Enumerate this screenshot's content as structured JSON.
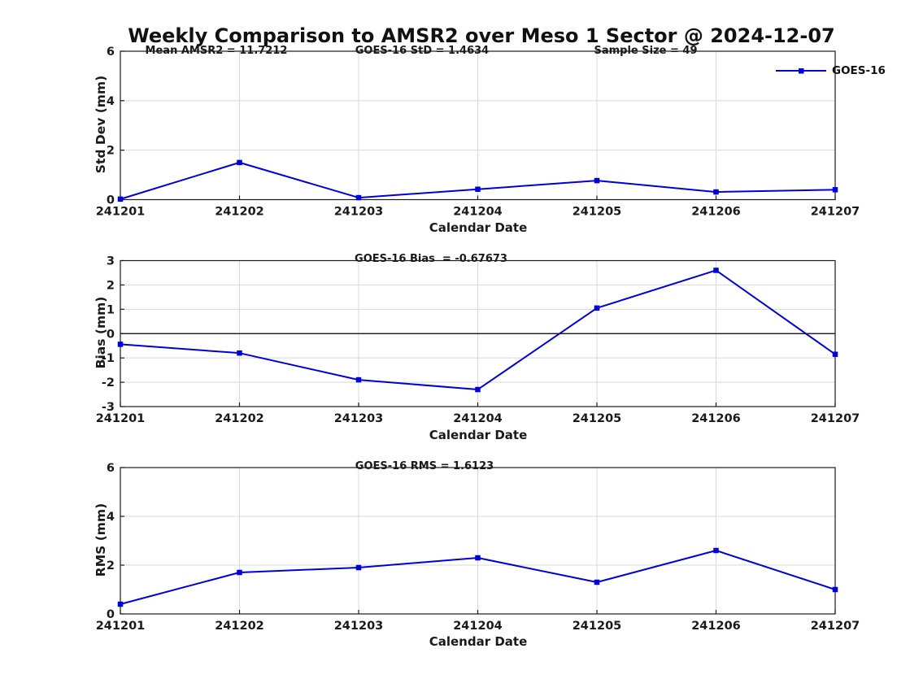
{
  "page_title": "Weekly Comparison to AMSR2 over Meso 1 Sector @ 2024-12-07",
  "legend": {
    "series_label": "GOES-16",
    "line_color": "#0000DD",
    "position": "top-right"
  },
  "colors": {
    "series_blue": "#0000DD",
    "grid_gray": "#d8d8d8",
    "axis_black": "#1a1a1a"
  },
  "chart_data": [
    {
      "type": "line",
      "panel": "std-dev",
      "annotations": [
        "Mean AMSR2 = 11.7212",
        "GOES-16 StD = 1.4634",
        "Sample Size = 49"
      ],
      "categories": [
        "241201",
        "241202",
        "241203",
        "241204",
        "241205",
        "241206",
        "241207"
      ],
      "series": [
        {
          "name": "GOES-16",
          "values": [
            0.02,
            1.5,
            0.08,
            0.42,
            0.77,
            0.31,
            0.4
          ]
        }
      ],
      "xlabel": "Calendar Date",
      "ylabel": "Std Dev (mm)",
      "ylim": [
        0,
        6
      ],
      "yticks": [
        0,
        2,
        4,
        6
      ],
      "grid": true,
      "zero_line": false,
      "marker": "square"
    },
    {
      "type": "line",
      "panel": "bias",
      "annotations": [
        "GOES-16 Bias  = -0.67673"
      ],
      "categories": [
        "241201",
        "241202",
        "241203",
        "241204",
        "241205",
        "241206",
        "241207"
      ],
      "series": [
        {
          "name": "GOES-16",
          "values": [
            -0.44,
            -0.8,
            -1.9,
            -2.3,
            1.05,
            2.6,
            -0.85
          ]
        }
      ],
      "xlabel": "Calendar Date",
      "ylabel": "Bias (mm)",
      "ylim": [
        -3,
        3
      ],
      "yticks": [
        -3,
        -2,
        -1,
        0,
        1,
        2,
        3
      ],
      "grid": true,
      "zero_line": true,
      "marker": "square"
    },
    {
      "type": "line",
      "panel": "rms",
      "annotations": [
        "GOES-16 RMS = 1.6123"
      ],
      "categories": [
        "241201",
        "241202",
        "241203",
        "241204",
        "241205",
        "241206",
        "241207"
      ],
      "series": [
        {
          "name": "GOES-16",
          "values": [
            0.4,
            1.7,
            1.9,
            2.3,
            1.3,
            2.6,
            1.0
          ]
        }
      ],
      "xlabel": "Calendar Date",
      "ylabel": "RMS (mm)",
      "ylim": [
        0,
        6
      ],
      "yticks": [
        0,
        2,
        4,
        6
      ],
      "grid": true,
      "zero_line": false,
      "marker": "square"
    }
  ]
}
